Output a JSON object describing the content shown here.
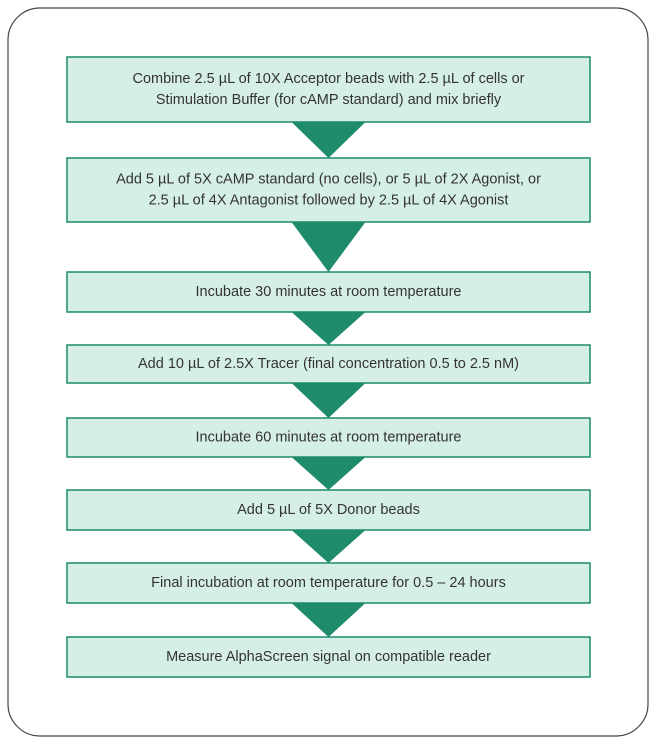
{
  "steps": [
    {
      "lines": [
        "Combine 2.5 µL of 10X Acceptor beads with 2.5 µL of cells or",
        "Stimulation Buffer (for cAMP standard) and mix briefly"
      ]
    },
    {
      "lines": [
        "Add 5 µL of 5X cAMP standard (no cells), or 5 µL of 2X Agonist, or",
        "2.5 µL of 4X Antagonist followed by 2.5 µL of 4X Agonist"
      ]
    },
    {
      "lines": [
        "Incubate 30 minutes at room temperature"
      ]
    },
    {
      "lines": [
        "Add 10 µL of 2.5X Tracer (final concentration 0.5 to 2.5 nM)"
      ]
    },
    {
      "lines": [
        "Incubate 60 minutes at room temperature"
      ]
    },
    {
      "lines": [
        "Add 5 µL of 5X Donor beads"
      ]
    },
    {
      "lines": [
        "Final incubation at room temperature for 0.5 – 24 hours"
      ]
    },
    {
      "lines": [
        "Measure AlphaScreen signal on compatible reader"
      ]
    }
  ]
}
